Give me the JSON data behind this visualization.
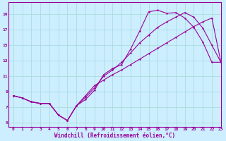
{
  "background_color": "#cceeff",
  "line_color": "#990099",
  "grid_color": "#aadddd",
  "xlabel": "Windchill (Refroidissement éolien,°C)",
  "xlim": [
    -0.5,
    23
  ],
  "ylim": [
    4.5,
    20.5
  ],
  "xticks": [
    0,
    1,
    2,
    3,
    4,
    5,
    6,
    7,
    8,
    9,
    10,
    11,
    12,
    13,
    14,
    15,
    16,
    17,
    18,
    19,
    20,
    21,
    22,
    23
  ],
  "yticks": [
    5,
    7,
    9,
    11,
    13,
    15,
    17,
    19
  ],
  "line1_x": [
    0,
    1,
    2,
    3,
    4,
    5,
    6,
    7,
    8,
    9,
    10,
    11,
    12,
    13,
    14,
    15,
    16,
    17,
    18,
    19,
    20,
    21,
    22,
    23
  ],
  "line1_y": [
    8.5,
    8.2,
    7.7,
    7.5,
    7.5,
    6.0,
    5.3,
    7.2,
    8.0,
    9.2,
    11.2,
    12.0,
    12.5,
    14.5,
    16.8,
    19.3,
    19.5,
    19.1,
    19.2,
    18.5,
    17.3,
    15.4,
    12.8,
    12.8
  ],
  "line2_x": [
    0,
    1,
    2,
    3,
    4,
    5,
    6,
    7,
    8,
    9,
    10,
    11,
    12,
    13,
    14,
    15,
    16,
    17,
    18,
    19,
    20,
    21,
    22,
    23
  ],
  "line2_y": [
    8.5,
    8.2,
    7.7,
    7.5,
    7.5,
    6.0,
    5.3,
    7.2,
    8.3,
    9.5,
    11.0,
    11.8,
    12.8,
    14.0,
    15.3,
    16.3,
    17.3,
    18.0,
    18.6,
    19.2,
    18.6,
    17.2,
    15.0,
    12.8
  ],
  "line3_x": [
    0,
    1,
    2,
    3,
    4,
    5,
    6,
    7,
    8,
    9,
    10,
    11,
    12,
    13,
    14,
    15,
    16,
    17,
    18,
    19,
    20,
    21,
    22,
    23
  ],
  "line3_y": [
    8.5,
    8.2,
    7.7,
    7.5,
    7.5,
    6.0,
    5.3,
    7.2,
    8.5,
    9.8,
    10.5,
    11.2,
    11.8,
    12.5,
    13.2,
    13.9,
    14.6,
    15.3,
    16.0,
    16.7,
    17.4,
    18.0,
    18.5,
    12.8
  ]
}
